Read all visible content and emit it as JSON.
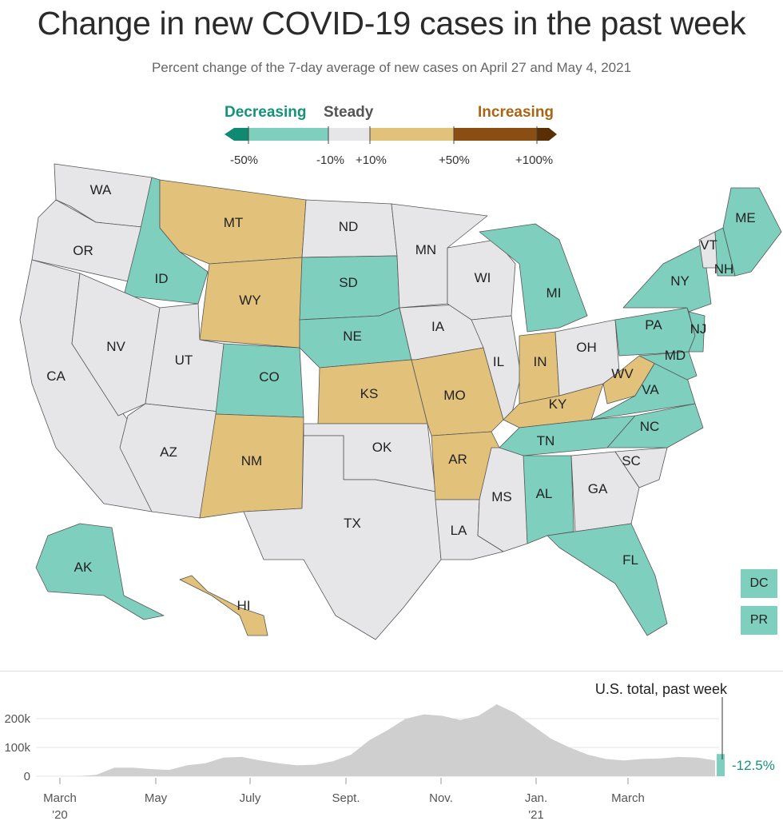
{
  "title": "Change in new COVID-19 cases in the past week",
  "subtitle": "Percent change of the 7-day average of new cases on April 27 and May 4, 2021",
  "legend": {
    "decreasing": "Decreasing",
    "steady": "Steady",
    "increasing": "Increasing",
    "ticks": [
      "-50%",
      "-10%",
      "+10%",
      "+50%",
      "+100%"
    ],
    "colors": {
      "strong_decrease": "#0f8a70",
      "decrease": "#7fcfbe",
      "steady": "#e6e6e8",
      "increase": "#e2c27a",
      "strong_increase": "#8a4e12",
      "max_increase": "#5b2f06"
    }
  },
  "states": [
    {
      "abbr": "WA",
      "category": "steady"
    },
    {
      "abbr": "OR",
      "category": "steady"
    },
    {
      "abbr": "CA",
      "category": "steady"
    },
    {
      "abbr": "ID",
      "category": "decreasing"
    },
    {
      "abbr": "NV",
      "category": "steady"
    },
    {
      "abbr": "MT",
      "category": "increasing"
    },
    {
      "abbr": "WY",
      "category": "increasing"
    },
    {
      "abbr": "UT",
      "category": "steady"
    },
    {
      "abbr": "AZ",
      "category": "steady"
    },
    {
      "abbr": "CO",
      "category": "decreasing"
    },
    {
      "abbr": "NM",
      "category": "increasing"
    },
    {
      "abbr": "ND",
      "category": "steady"
    },
    {
      "abbr": "SD",
      "category": "decreasing"
    },
    {
      "abbr": "NE",
      "category": "decreasing"
    },
    {
      "abbr": "KS",
      "category": "increasing"
    },
    {
      "abbr": "OK",
      "category": "steady"
    },
    {
      "abbr": "TX",
      "category": "steady"
    },
    {
      "abbr": "MN",
      "category": "steady"
    },
    {
      "abbr": "IA",
      "category": "steady"
    },
    {
      "abbr": "MO",
      "category": "increasing"
    },
    {
      "abbr": "AR",
      "category": "increasing"
    },
    {
      "abbr": "LA",
      "category": "steady"
    },
    {
      "abbr": "WI",
      "category": "steady"
    },
    {
      "abbr": "IL",
      "category": "steady"
    },
    {
      "abbr": "MS",
      "category": "steady"
    },
    {
      "abbr": "MI",
      "category": "decreasing"
    },
    {
      "abbr": "IN",
      "category": "increasing"
    },
    {
      "abbr": "KY",
      "category": "increasing"
    },
    {
      "abbr": "TN",
      "category": "decreasing"
    },
    {
      "abbr": "AL",
      "category": "decreasing"
    },
    {
      "abbr": "OH",
      "category": "steady"
    },
    {
      "abbr": "WV",
      "category": "increasing"
    },
    {
      "abbr": "GA",
      "category": "steady"
    },
    {
      "abbr": "FL",
      "category": "decreasing"
    },
    {
      "abbr": "SC",
      "category": "steady"
    },
    {
      "abbr": "NC",
      "category": "decreasing"
    },
    {
      "abbr": "VA",
      "category": "decreasing"
    },
    {
      "abbr": "PA",
      "category": "decreasing"
    },
    {
      "abbr": "MD",
      "category": "decreasing"
    },
    {
      "abbr": "NJ",
      "category": "decreasing"
    },
    {
      "abbr": "NY",
      "category": "decreasing"
    },
    {
      "abbr": "VT",
      "category": "steady"
    },
    {
      "abbr": "NH",
      "category": "decreasing"
    },
    {
      "abbr": "ME",
      "category": "decreasing"
    },
    {
      "abbr": "AK",
      "category": "decreasing"
    },
    {
      "abbr": "HI",
      "category": "increasing"
    },
    {
      "abbr": "DC",
      "category": "decreasing"
    },
    {
      "abbr": "PR",
      "category": "decreasing"
    }
  ],
  "trend": {
    "annotation": "U.S. total, past week",
    "value_label": "-12.5%",
    "y_ticks": [
      "200k",
      "100k",
      "0"
    ],
    "x_ticks": [
      "March",
      "May",
      "July",
      "Sept.",
      "Nov.",
      "Jan.",
      "March"
    ],
    "year_labels": [
      "'20",
      "'21"
    ]
  },
  "chart_data": {
    "type": "area",
    "series": [
      {
        "values": [
          0,
          0,
          5000,
          30000,
          30000,
          25000,
          22000,
          38000,
          45000,
          65000,
          67000,
          55000,
          45000,
          38000,
          40000,
          52000,
          75000,
          125000,
          160000,
          200000,
          215000,
          210000,
          195000,
          210000,
          250000,
          220000,
          175000,
          130000,
          100000,
          75000,
          60000,
          55000,
          60000,
          62000,
          67000,
          65000,
          55000
        ]
      }
    ],
    "ylim": [
      0,
      250000
    ],
    "y_ticks": [
      0,
      100000,
      200000
    ]
  }
}
